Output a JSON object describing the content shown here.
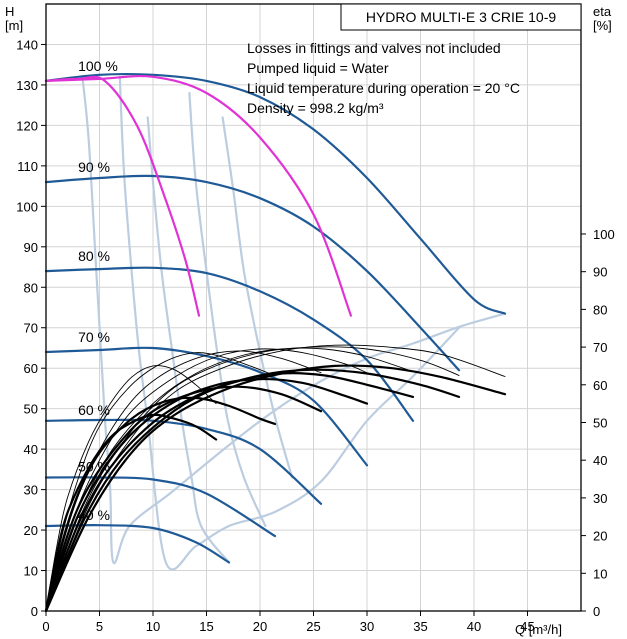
{
  "chart_data": {
    "type": "line",
    "title": "HYDRO MULTI-E 3 CRIE 10-9",
    "notes": [
      "Losses in fittings and valves not included",
      "Pumped liquid = Water",
      "Liquid temperature during operation = 20 °C",
      "Density = 998.2 kg/m³"
    ],
    "ylabel_left": [
      "H",
      "[m]"
    ],
    "ylabel_right": [
      "eta",
      "[%]"
    ],
    "xlabel": "Q [m³/h]",
    "xlim": [
      0,
      50
    ],
    "ylim": [
      0,
      150
    ],
    "eta_lim": [
      0,
      100
    ],
    "x_ticks": [
      0,
      5,
      10,
      15,
      20,
      25,
      30,
      35,
      40,
      45
    ],
    "y_ticks": [
      0,
      10,
      20,
      30,
      40,
      50,
      60,
      70,
      80,
      90,
      100,
      110,
      120,
      130,
      140
    ],
    "eta_ticks": [
      0,
      10,
      20,
      30,
      40,
      50,
      60,
      70,
      80,
      90,
      100
    ],
    "speed_labels": [
      {
        "text": "100 %",
        "x": 3,
        "y": 133
      },
      {
        "text": "90 %",
        "x": 3,
        "y": 108
      },
      {
        "text": "80 %",
        "x": 3,
        "y": 86
      },
      {
        "text": "70 %",
        "x": 3,
        "y": 66
      },
      {
        "text": "60 %",
        "x": 3,
        "y": 48
      },
      {
        "text": "50 %",
        "x": 3,
        "y": 34
      },
      {
        "text": "40 %",
        "x": 3,
        "y": 22
      }
    ],
    "colors": {
      "head_curve": "#1f5a96",
      "limit_curve": "#e033d6",
      "guide": "#bccde0",
      "efficiency": "#000000"
    },
    "series": [
      {
        "name": "",
        "kind": "head",
        "points": [
          [
            0,
            131
          ],
          [
            5,
            132.5
          ],
          [
            10,
            132.5
          ],
          [
            15,
            131
          ],
          [
            20,
            127
          ],
          [
            25,
            119
          ],
          [
            30,
            107
          ],
          [
            35,
            92
          ],
          [
            40,
            77
          ],
          [
            42.9,
            73.5
          ]
        ]
      },
      {
        "name": "",
        "kind": "head",
        "points": [
          [
            0,
            106
          ],
          [
            5,
            107
          ],
          [
            10,
            107.5
          ],
          [
            15,
            106
          ],
          [
            20,
            102
          ],
          [
            25,
            95
          ],
          [
            30,
            84
          ],
          [
            35,
            70
          ],
          [
            38.6,
            59.5
          ]
        ]
      },
      {
        "name": "",
        "kind": "head",
        "points": [
          [
            0,
            84
          ],
          [
            5,
            84.5
          ],
          [
            10,
            84.8
          ],
          [
            15,
            83.5
          ],
          [
            20,
            79
          ],
          [
            25,
            72
          ],
          [
            30,
            62
          ],
          [
            34.3,
            47
          ]
        ]
      },
      {
        "name": "",
        "kind": "head",
        "points": [
          [
            0,
            64
          ],
          [
            5,
            64.5
          ],
          [
            10,
            65
          ],
          [
            15,
            63
          ],
          [
            20,
            59
          ],
          [
            25,
            52
          ],
          [
            30,
            36
          ]
        ]
      },
      {
        "name": "",
        "kind": "head",
        "points": [
          [
            0,
            47
          ],
          [
            5,
            47.2
          ],
          [
            10,
            47
          ],
          [
            15,
            45
          ],
          [
            20,
            40
          ],
          [
            25.7,
            26.5
          ]
        ]
      },
      {
        "name": "",
        "kind": "head",
        "points": [
          [
            0,
            33
          ],
          [
            5,
            33
          ],
          [
            10,
            32.5
          ],
          [
            15,
            29
          ],
          [
            21.4,
            18.5
          ]
        ]
      },
      {
        "name": "",
        "kind": "head",
        "points": [
          [
            0,
            21
          ],
          [
            5,
            21.2
          ],
          [
            10,
            20.5
          ],
          [
            14,
            17
          ],
          [
            17.1,
            12
          ]
        ]
      },
      {
        "name": "",
        "kind": "limit",
        "points": [
          [
            0,
            131
          ],
          [
            3,
            131.5
          ],
          [
            5.5,
            131
          ],
          [
            8.5,
            120
          ],
          [
            11,
            103
          ],
          [
            13,
            87
          ],
          [
            14.3,
            73
          ]
        ]
      },
      {
        "name": "",
        "kind": "limit",
        "points": [
          [
            0,
            131
          ],
          [
            5,
            131.5
          ],
          [
            10,
            132
          ],
          [
            15,
            128
          ],
          [
            20,
            117
          ],
          [
            25,
            98
          ],
          [
            28.5,
            73
          ]
        ]
      },
      {
        "name": "",
        "kind": "guide",
        "points": [
          [
            3.4,
            132
          ],
          [
            4,
            116
          ],
          [
            4.7,
            84
          ],
          [
            5.5,
            48
          ],
          [
            6,
            30
          ],
          [
            6.3,
            12
          ],
          [
            7.8,
            21
          ],
          [
            11.8,
            29.5
          ],
          [
            17.1,
            41
          ],
          [
            21.4,
            49.6
          ],
          [
            25.7,
            56.8
          ],
          [
            30,
            62.4
          ],
          [
            34.3,
            66.1
          ],
          [
            38.6,
            70.2
          ],
          [
            42.9,
            73.5
          ]
        ]
      },
      {
        "name": "",
        "kind": "guide",
        "points": [
          [
            6.9,
            132
          ],
          [
            7.3,
            108
          ],
          [
            8,
            84
          ],
          [
            8.7,
            64
          ],
          [
            9.5,
            47
          ],
          [
            11.2,
            12
          ],
          [
            14,
            16
          ],
          [
            17.1,
            21
          ],
          [
            21.4,
            24.5
          ],
          [
            25.7,
            32
          ],
          [
            30,
            47
          ],
          [
            34.3,
            58
          ],
          [
            38.6,
            70
          ]
        ]
      },
      {
        "name": "",
        "kind": "guide",
        "points": [
          [
            9.5,
            122
          ],
          [
            10,
            106
          ],
          [
            10.8,
            84
          ],
          [
            11.8,
            64
          ],
          [
            12.7,
            47
          ],
          [
            13.6,
            33
          ],
          [
            14.5,
            21
          ],
          [
            17.1,
            12
          ]
        ]
      },
      {
        "name": "",
        "kind": "guide",
        "points": [
          [
            13.4,
            128
          ],
          [
            14,
            106
          ],
          [
            15,
            84
          ],
          [
            16,
            64
          ],
          [
            17,
            47
          ],
          [
            18.5,
            33
          ],
          [
            20.5,
            21
          ]
        ]
      },
      {
        "name": "",
        "kind": "guide",
        "points": [
          [
            16.5,
            122
          ],
          [
            17.5,
            104
          ],
          [
            18.5,
            84
          ],
          [
            20,
            64
          ],
          [
            21.5,
            47
          ],
          [
            23,
            33
          ]
        ]
      },
      {
        "name": "",
        "kind": "eff",
        "heavy": true,
        "points": [
          [
            0,
            0
          ],
          [
            1,
            15
          ],
          [
            2,
            26
          ],
          [
            4,
            38
          ],
          [
            6,
            46
          ],
          [
            8,
            50
          ],
          [
            10,
            52
          ],
          [
            12,
            51
          ],
          [
            14,
            49
          ],
          [
            15.9,
            45.5
          ]
        ]
      },
      {
        "name": "",
        "kind": "eff",
        "heavy": false,
        "points": [
          [
            0,
            0
          ],
          [
            1,
            17
          ],
          [
            2,
            30
          ],
          [
            4,
            45
          ],
          [
            6,
            55
          ],
          [
            8,
            62
          ],
          [
            10,
            65
          ],
          [
            12,
            64
          ],
          [
            14,
            60
          ],
          [
            15.9,
            55
          ]
        ]
      },
      {
        "name": "",
        "kind": "eff",
        "heavy": true,
        "points": [
          [
            0,
            0
          ],
          [
            1.5,
            18
          ],
          [
            3,
            31
          ],
          [
            5,
            42
          ],
          [
            8,
            51
          ],
          [
            11,
            55.5
          ],
          [
            14,
            56.5
          ],
          [
            17,
            54.5
          ],
          [
            20,
            51
          ],
          [
            21.4,
            49.6
          ]
        ]
      },
      {
        "name": "",
        "kind": "eff",
        "heavy": false,
        "points": [
          [
            0,
            0
          ],
          [
            1.5,
            20
          ],
          [
            3,
            35
          ],
          [
            5,
            49
          ],
          [
            8,
            60
          ],
          [
            11,
            66
          ],
          [
            14,
            68.5
          ],
          [
            17,
            67
          ],
          [
            20,
            64
          ],
          [
            21.4,
            62.3
          ]
        ]
      },
      {
        "name": "",
        "kind": "eff",
        "heavy": true,
        "points": [
          [
            0,
            0
          ],
          [
            2,
            20
          ],
          [
            4,
            33
          ],
          [
            7,
            45
          ],
          [
            10,
            53
          ],
          [
            14,
            58
          ],
          [
            18,
            59.5
          ],
          [
            22,
            57.5
          ],
          [
            25.7,
            53
          ]
        ]
      },
      {
        "name": "",
        "kind": "eff",
        "heavy": false,
        "points": [
          [
            0,
            0
          ],
          [
            2,
            22
          ],
          [
            4,
            37
          ],
          [
            7,
            52
          ],
          [
            10,
            61
          ],
          [
            14,
            67
          ],
          [
            18,
            69
          ],
          [
            22,
            67
          ],
          [
            25.7,
            63.2
          ]
        ]
      },
      {
        "name": "",
        "kind": "eff",
        "heavy": true,
        "points": [
          [
            0,
            0
          ],
          [
            2.5,
            22
          ],
          [
            5,
            36
          ],
          [
            8,
            47
          ],
          [
            12,
            55.5
          ],
          [
            16,
            60
          ],
          [
            20,
            61.5
          ],
          [
            24,
            60.5
          ],
          [
            28,
            57
          ],
          [
            30,
            55
          ]
        ]
      },
      {
        "name": "",
        "kind": "eff",
        "heavy": false,
        "points": [
          [
            0,
            0
          ],
          [
            2.5,
            24
          ],
          [
            5,
            40
          ],
          [
            8,
            53
          ],
          [
            12,
            62
          ],
          [
            16,
            67.5
          ],
          [
            20,
            69.5
          ],
          [
            24,
            68.5
          ],
          [
            28,
            65.5
          ],
          [
            30,
            63.2
          ]
        ]
      },
      {
        "name": "",
        "kind": "eff",
        "heavy": true,
        "points": [
          [
            0,
            0
          ],
          [
            3,
            23
          ],
          [
            6,
            38
          ],
          [
            10,
            50
          ],
          [
            14,
            57
          ],
          [
            18,
            61
          ],
          [
            22,
            63
          ],
          [
            26,
            62.5
          ],
          [
            30,
            60
          ],
          [
            34.3,
            56.8
          ]
        ]
      },
      {
        "name": "",
        "kind": "eff",
        "heavy": false,
        "points": [
          [
            0,
            0
          ],
          [
            3,
            25
          ],
          [
            6,
            42
          ],
          [
            10,
            55
          ],
          [
            14,
            63
          ],
          [
            18,
            67.5
          ],
          [
            22,
            69.5
          ],
          [
            26,
            69.5
          ],
          [
            30,
            67.5
          ],
          [
            34.3,
            63.5
          ]
        ]
      },
      {
        "name": "",
        "kind": "eff",
        "heavy": true,
        "points": [
          [
            0,
            0
          ],
          [
            3.5,
            24
          ],
          [
            7,
            40
          ],
          [
            11,
            51
          ],
          [
            15,
            58
          ],
          [
            20,
            62.5
          ],
          [
            25,
            64
          ],
          [
            30,
            63
          ],
          [
            35,
            60
          ],
          [
            38.6,
            56.8
          ]
        ]
      },
      {
        "name": "",
        "kind": "eff",
        "heavy": false,
        "points": [
          [
            0,
            0
          ],
          [
            3.5,
            27
          ],
          [
            7,
            44
          ],
          [
            11,
            57
          ],
          [
            15,
            64
          ],
          [
            20,
            68.5
          ],
          [
            25,
            70
          ],
          [
            30,
            69.5
          ],
          [
            35,
            66.5
          ],
          [
            38.6,
            62.5
          ]
        ]
      },
      {
        "name": "",
        "kind": "eff",
        "heavy": true,
        "points": [
          [
            0,
            0
          ],
          [
            4,
            25
          ],
          [
            8,
            42
          ],
          [
            12,
            52
          ],
          [
            17,
            59
          ],
          [
            22,
            63
          ],
          [
            27,
            65
          ],
          [
            32,
            64.5
          ],
          [
            37,
            62
          ],
          [
            42.9,
            57.5
          ]
        ]
      },
      {
        "name": "",
        "kind": "eff",
        "heavy": false,
        "points": [
          [
            0,
            0
          ],
          [
            4,
            28
          ],
          [
            8,
            46
          ],
          [
            12,
            58
          ],
          [
            17,
            65
          ],
          [
            22,
            69
          ],
          [
            27,
            70.5
          ],
          [
            32,
            70
          ],
          [
            37,
            68
          ],
          [
            42.9,
            62.2
          ]
        ]
      }
    ]
  }
}
